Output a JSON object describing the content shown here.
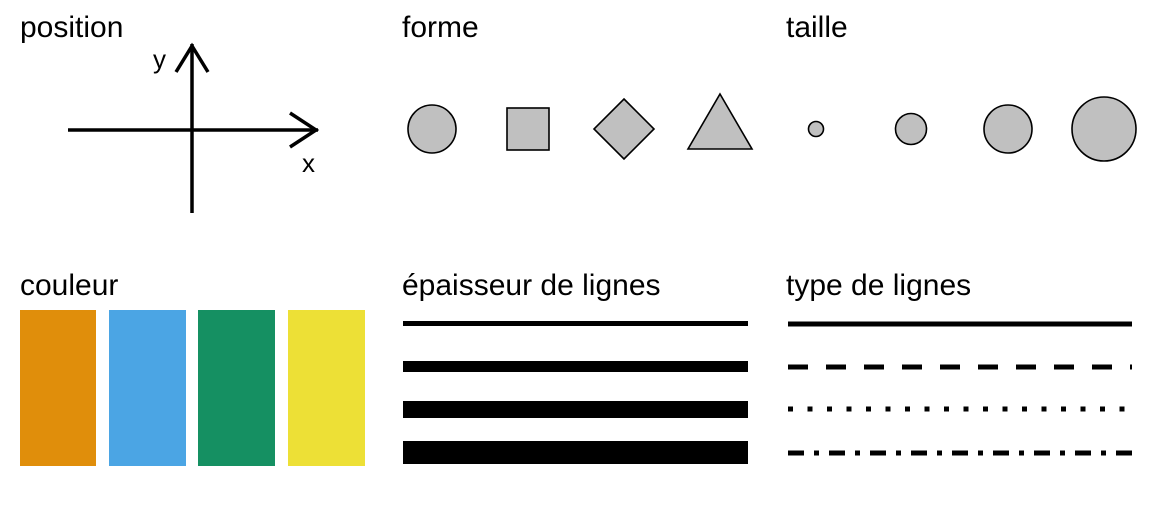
{
  "panels": {
    "position": {
      "title": "position",
      "axis_x_label": "x",
      "axis_y_label": "y"
    },
    "shape": {
      "title": "forme",
      "items": [
        {
          "name": "circle"
        },
        {
          "name": "square"
        },
        {
          "name": "diamond"
        },
        {
          "name": "triangle"
        }
      ],
      "fill_color": "#c0c0c0",
      "stroke_color": "#000000"
    },
    "size": {
      "title": "taille",
      "items": [
        {
          "name": "size-1",
          "relative_size": 0.23
        },
        {
          "name": "size-2",
          "relative_size": 0.48
        },
        {
          "name": "size-3",
          "relative_size": 0.74
        },
        {
          "name": "size-4",
          "relative_size": 1.0
        }
      ],
      "fill_color": "#c0c0c0",
      "stroke_color": "#000000"
    },
    "color": {
      "title": "couleur",
      "swatches": [
        {
          "name": "orange",
          "color": "#E08E0B"
        },
        {
          "name": "sky-blue",
          "color": "#4BA5E4"
        },
        {
          "name": "green",
          "color": "#159062"
        },
        {
          "name": "yellow",
          "color": "#EDE036"
        }
      ]
    },
    "line_width": {
      "title": "épaisseur de lignes",
      "levels": [
        {
          "name": "width-1",
          "relative_width": 0.33
        },
        {
          "name": "width-2",
          "relative_width": 0.67
        },
        {
          "name": "width-3",
          "relative_width": 0.83
        },
        {
          "name": "width-4",
          "relative_width": 1.0
        }
      ]
    },
    "line_type": {
      "title": "type de lignes",
      "types": [
        {
          "name": "solid"
        },
        {
          "name": "dashed"
        },
        {
          "name": "dotted"
        },
        {
          "name": "dash-dot"
        }
      ]
    }
  }
}
